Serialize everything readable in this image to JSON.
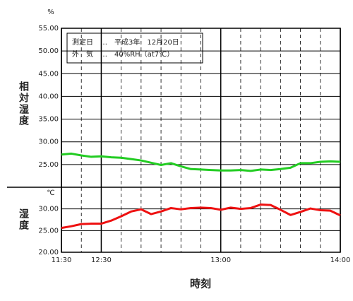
{
  "chart_data": [
    {
      "type": "line",
      "y_unit": "%",
      "y_label": "相対湿度",
      "annotations": [
        "測定日　…　平成3年　12月20日",
        "外　気　…　40%RH（at7℃）"
      ],
      "x": [
        0,
        0.5,
        1,
        1.5,
        2,
        2.5,
        3,
        3.5,
        4,
        4.5,
        5,
        5.5,
        6,
        6.5,
        7,
        7.5,
        8,
        8.5,
        9,
        9.5,
        10,
        10.5,
        11,
        11.5,
        12,
        12.5,
        13,
        13.5,
        14
      ],
      "series": [
        {
          "color": "#22cc22",
          "values": [
            27.2,
            27.4,
            27.0,
            26.7,
            26.8,
            26.6,
            26.5,
            26.2,
            25.9,
            25.4,
            24.9,
            25.3,
            24.6,
            24.0,
            23.9,
            23.8,
            23.7,
            23.7,
            23.8,
            23.6,
            23.9,
            23.8,
            24.0,
            24.3,
            25.3,
            25.3,
            25.6,
            25.7,
            25.6
          ]
        }
      ],
      "xlim": [
        0,
        14
      ],
      "ylim": [
        20,
        55
      ],
      "yticks": [
        {
          "value": 25,
          "label": "25.00"
        },
        {
          "value": 30,
          "label": "30.00"
        },
        {
          "value": 35,
          "label": "35.00"
        },
        {
          "value": 40,
          "label": "40.00"
        },
        {
          "value": 45,
          "label": "45.00"
        },
        {
          "value": 50,
          "label": "50.00"
        },
        {
          "value": 55,
          "label": "55.00"
        }
      ],
      "grid": true
    },
    {
      "type": "line",
      "y_unit": "℃",
      "y_label": "湿度",
      "x_label": "時刻",
      "x": [
        0,
        0.5,
        1,
        1.5,
        2,
        2.5,
        3,
        3.5,
        4,
        4.5,
        5,
        5.5,
        6,
        6.5,
        7,
        7.5,
        8,
        8.5,
        9,
        9.5,
        10,
        10.5,
        11,
        11.5,
        12,
        12.5,
        13,
        13.5,
        14
      ],
      "series": [
        {
          "color": "#ee1111",
          "values": [
            25.6,
            26.0,
            26.5,
            26.6,
            26.6,
            27.3,
            28.3,
            29.4,
            29.9,
            28.8,
            29.4,
            30.2,
            29.9,
            30.2,
            30.3,
            30.2,
            29.8,
            30.3,
            30.0,
            30.2,
            31.0,
            30.9,
            29.8,
            28.6,
            29.3,
            30.1,
            29.7,
            29.6,
            28.5
          ]
        }
      ],
      "xlim": [
        0,
        14
      ],
      "ylim": [
        20,
        35
      ],
      "yticks": [
        {
          "value": 20,
          "label": "20.00"
        },
        {
          "value": 25,
          "label": "25.00"
        },
        {
          "value": 30,
          "label": "30.00"
        }
      ],
      "xticks": [
        {
          "value": 0,
          "label": "11:30"
        },
        {
          "value": 2,
          "label": "12:30"
        },
        {
          "value": 8,
          "label": "13:00"
        },
        {
          "value": 14,
          "label": "14:00"
        }
      ],
      "minor_xticks": [
        1,
        3,
        4,
        5,
        6,
        7,
        9,
        10,
        11,
        12,
        13
      ],
      "grid": true
    }
  ]
}
